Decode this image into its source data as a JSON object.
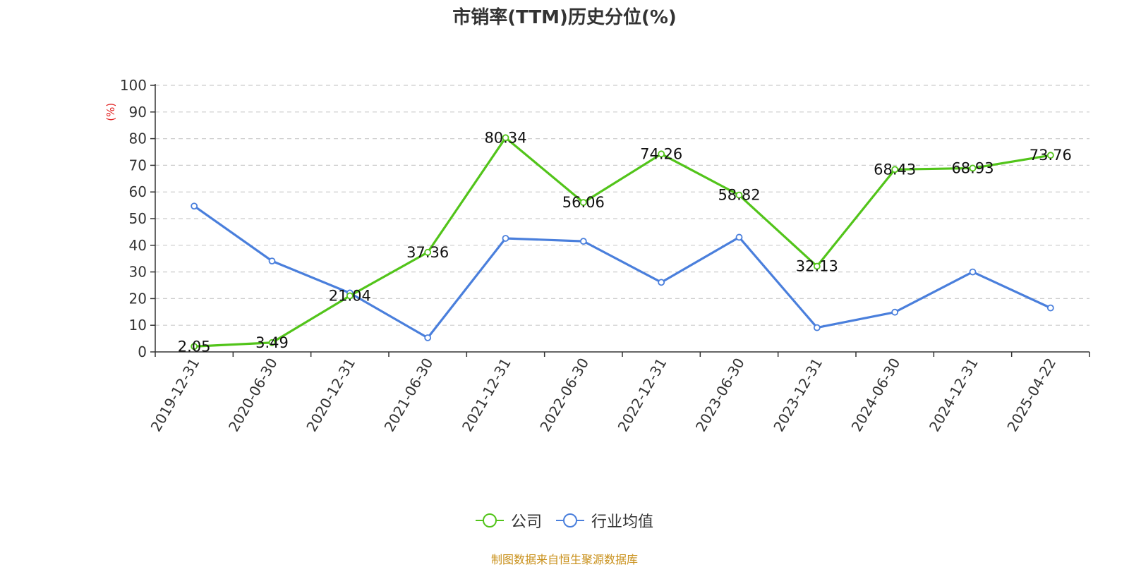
{
  "chart_data": {
    "type": "line",
    "title": "市销率(TTM)历史分位(%)",
    "ylabel": "(%)",
    "xlabel": "",
    "ylim": [
      0,
      100
    ],
    "yticks": [
      0,
      10,
      20,
      30,
      40,
      50,
      60,
      70,
      80,
      90,
      100
    ],
    "grid": true,
    "legend_position": "bottom-center",
    "categories": [
      "2019-12-31",
      "2020-06-30",
      "2020-12-31",
      "2021-06-30",
      "2021-12-31",
      "2022-06-30",
      "2022-12-31",
      "2023-06-30",
      "2023-12-31",
      "2024-06-30",
      "2024-12-31",
      "2025-04-22"
    ],
    "series": [
      {
        "name": "公司",
        "color": "#52c41a",
        "show_labels": true,
        "values": [
          2.05,
          3.49,
          21.04,
          37.36,
          80.34,
          56.06,
          74.26,
          58.82,
          32.13,
          68.43,
          68.93,
          73.76
        ]
      },
      {
        "name": "行业均值",
        "color": "#4a7fdc",
        "show_labels": false,
        "values": [
          54.7,
          34.1,
          22.1,
          5.3,
          42.6,
          41.5,
          26.1,
          43.0,
          9.1,
          14.9,
          30.0,
          16.5
        ]
      }
    ]
  },
  "source_note": "制图数据来自恒生聚源数据库"
}
